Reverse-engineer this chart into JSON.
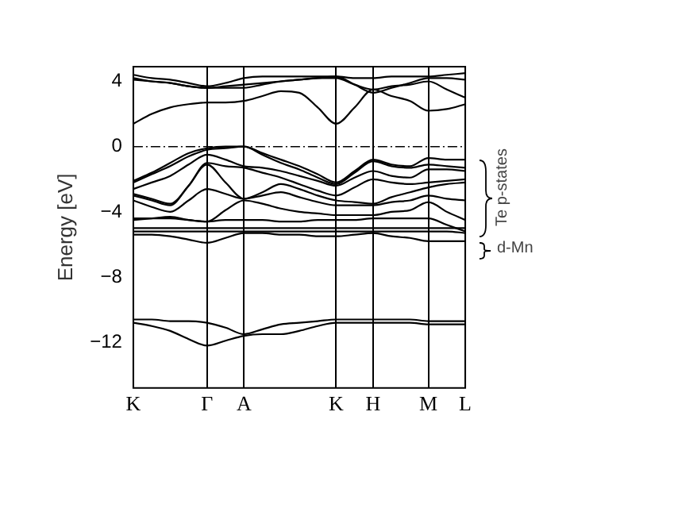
{
  "chart_data": {
    "type": "line",
    "ylabel": "Energy [eV]",
    "categories": [
      "K",
      null,
      null,
      null,
      "Γ",
      null,
      "A",
      null,
      null,
      null,
      null,
      "K",
      null,
      "H",
      null,
      null,
      "M",
      null,
      "L"
    ],
    "ylim": [
      -14.8,
      4.9
    ],
    "yticks": [
      {
        "value": -12,
        "label": "−12"
      },
      {
        "value": -8,
        "label": "−8"
      },
      {
        "value": -4,
        "label": "−4"
      },
      0,
      4
    ],
    "grid": "x",
    "legend": false,
    "marker": "none",
    "line_style": "solid",
    "ref_lines": [
      {
        "axis": "y",
        "value": 0,
        "color": "#000000",
        "line_style": "dashed"
      }
    ],
    "annotations": [
      "Te p-states",
      "d-Mn"
    ],
    "series": [
      {
        "color": "#000000",
        "values": [
          1.4,
          2.0,
          2.4,
          2.6,
          2.7,
          2.7,
          2.8,
          3.1,
          3.4,
          3.3,
          2.4,
          1.4,
          2.4,
          3.5,
          3.1,
          2.8,
          2.2,
          2.3,
          2.6
        ]
      },
      {
        "color": "#000000",
        "values": [
          4.2,
          4.0,
          3.9,
          3.7,
          3.6,
          3.7,
          3.8,
          3.9,
          4.0,
          4.1,
          4.2,
          4.2,
          3.8,
          3.5,
          3.7,
          3.8,
          4.0,
          3.5,
          3.0
        ]
      },
      {
        "color": "#000000",
        "values": [
          4.4,
          4.2,
          4.1,
          3.9,
          3.7,
          3.9,
          4.2,
          4.3,
          4.3,
          4.3,
          4.3,
          4.3,
          4.2,
          4.2,
          4.3,
          4.3,
          4.3,
          4.4,
          4.5
        ]
      },
      {
        "color": "#000000",
        "values": [
          4.1,
          4.0,
          3.9,
          3.7,
          3.6,
          3.6,
          3.6,
          3.8,
          4.0,
          4.1,
          4.2,
          4.3,
          3.8,
          3.3,
          3.6,
          3.9,
          4.2,
          4.2,
          4.1
        ]
      },
      {
        "color": "#000000",
        "values": [
          -2.1,
          -1.6,
          -1.0,
          -0.4,
          -0.1,
          0.0,
          0.0,
          -0.4,
          -0.8,
          -1.2,
          -1.7,
          -2.2,
          -1.5,
          -0.8,
          -1.1,
          -1.2,
          -0.7,
          -0.8,
          -0.8
        ]
      },
      {
        "color": "#000000",
        "values": [
          -2.2,
          -1.7,
          -1.2,
          -0.6,
          -0.2,
          -0.1,
          0.0,
          -0.5,
          -1.0,
          -1.4,
          -1.9,
          -2.3,
          -1.6,
          -0.9,
          -1.2,
          -1.3,
          -1.1,
          -1.2,
          -1.3
        ]
      },
      {
        "color": "#000000",
        "values": [
          -2.6,
          -2.2,
          -1.8,
          -1.1,
          -0.5,
          -0.8,
          -1.2,
          -1.3,
          -1.5,
          -1.8,
          -2.1,
          -2.4,
          -1.9,
          -1.5,
          -1.8,
          -1.9,
          -1.4,
          -1.4,
          -1.5
        ]
      },
      {
        "color": "#000000",
        "values": [
          -2.9,
          -3.2,
          -3.5,
          -2.4,
          -1.0,
          -1.2,
          -1.3,
          -1.6,
          -1.9,
          -2.3,
          -2.7,
          -3.0,
          -2.5,
          -2.0,
          -2.2,
          -2.3,
          -2.2,
          -2.1,
          -2.0
        ]
      },
      {
        "color": "#000000",
        "values": [
          -3.0,
          -3.3,
          -3.6,
          -2.4,
          -1.1,
          -2.2,
          -3.2,
          -2.8,
          -2.3,
          -2.6,
          -3.0,
          -3.3,
          -3.4,
          -3.5,
          -3.1,
          -2.8,
          -2.5,
          -2.3,
          -2.2
        ]
      },
      {
        "color": "#000000",
        "values": [
          -3.3,
          -3.7,
          -4.0,
          -3.3,
          -2.6,
          -2.9,
          -3.2,
          -3.0,
          -2.8,
          -3.1,
          -3.4,
          -3.6,
          -3.6,
          -3.6,
          -3.4,
          -3.3,
          -3.0,
          -3.2,
          -3.3
        ]
      },
      {
        "color": "#000000",
        "values": [
          -4.4,
          -4.4,
          -4.4,
          -4.5,
          -4.6,
          -3.9,
          -3.3,
          -3.5,
          -3.8,
          -4.0,
          -4.1,
          -4.2,
          -4.2,
          -4.2,
          -4.0,
          -3.9,
          -3.4,
          -4.0,
          -4.5
        ]
      },
      {
        "color": "#000000",
        "values": [
          -4.5,
          -4.4,
          -4.3,
          -4.5,
          -4.6,
          -4.5,
          -4.5,
          -4.5,
          -4.6,
          -4.6,
          -4.5,
          -4.5,
          -4.5,
          -4.4,
          -4.4,
          -4.4,
          -4.4,
          -4.8,
          -5.2
        ]
      },
      {
        "color": "#000000",
        "values": [
          -5.0,
          -5.0,
          -5.0,
          -5.0,
          -5.0,
          -5.0,
          -5.0,
          -5.0,
          -5.0,
          -5.0,
          -5.0,
          -5.0,
          -5.0,
          -5.0,
          -5.0,
          -5.0,
          -5.0,
          -5.0,
          -5.0
        ]
      },
      {
        "color": "#000000",
        "values": [
          -5.2,
          -5.2,
          -5.2,
          -5.2,
          -5.2,
          -5.2,
          -5.2,
          -5.2,
          -5.2,
          -5.2,
          -5.2,
          -5.2,
          -5.2,
          -5.2,
          -5.2,
          -5.2,
          -5.2,
          -5.2,
          -5.3
        ]
      },
      {
        "color": "#000000",
        "values": [
          -5.4,
          -5.4,
          -5.5,
          -5.7,
          -5.9,
          -5.6,
          -5.3,
          -5.3,
          -5.4,
          -5.4,
          -5.5,
          -5.5,
          -5.4,
          -5.3,
          -5.5,
          -5.6,
          -5.8,
          -5.8,
          -5.8
        ]
      },
      {
        "color": "#000000",
        "values": [
          -10.6,
          -10.6,
          -10.7,
          -10.7,
          -10.8,
          -11.1,
          -11.5,
          -11.2,
          -10.9,
          -10.8,
          -10.7,
          -10.6,
          -10.6,
          -10.6,
          -10.6,
          -10.6,
          -10.7,
          -10.7,
          -10.7
        ]
      },
      {
        "color": "#000000",
        "values": [
          -10.8,
          -11.0,
          -11.3,
          -11.8,
          -12.2,
          -11.9,
          -11.6,
          -11.5,
          -11.5,
          -11.3,
          -11.0,
          -10.8,
          -10.8,
          -10.8,
          -10.8,
          -10.8,
          -10.9,
          -10.9,
          -10.9
        ]
      }
    ]
  }
}
